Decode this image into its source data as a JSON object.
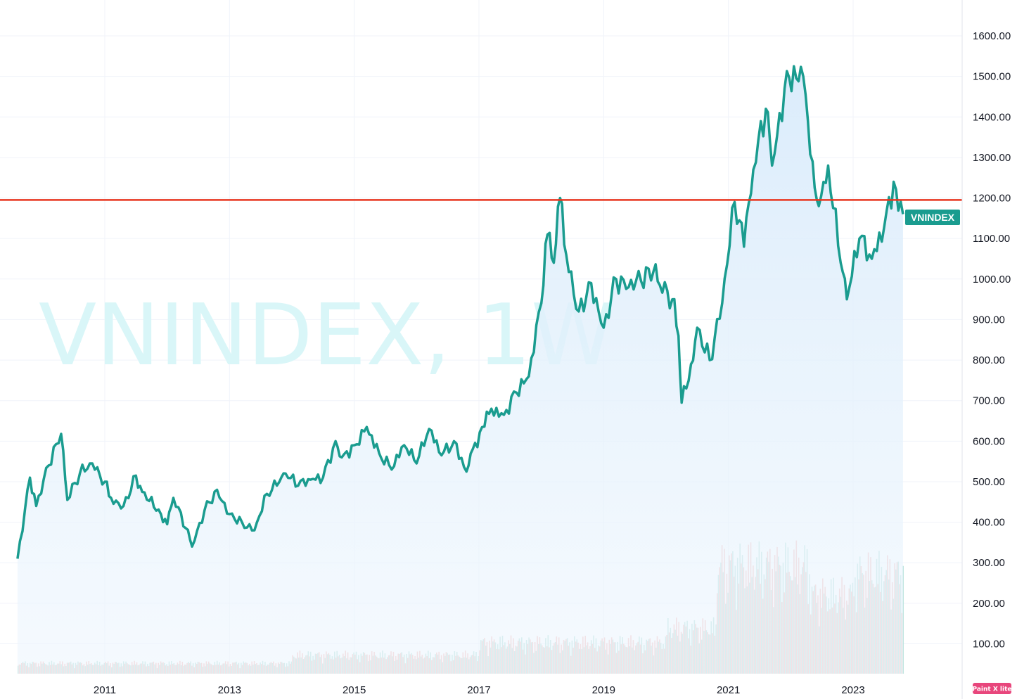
{
  "chart_data": {
    "type": "area",
    "symbol": "VNINDEX",
    "interval": "1W",
    "watermark": "VNINDEX, 1W",
    "x_ticks": [
      "2011",
      "2013",
      "2015",
      "2017",
      "2019",
      "2021",
      "2023"
    ],
    "y_ticks": [
      "100.00",
      "200.00",
      "300.00",
      "400.00",
      "500.00",
      "600.00",
      "700.00",
      "800.00",
      "900.00",
      "1000.00",
      "1100.00",
      "1200.00",
      "1300.00",
      "1400.00",
      "1500.00",
      "1600.00"
    ],
    "ylim": [
      0,
      1680
    ],
    "grid": true,
    "series": [
      {
        "name": "VNINDEX",
        "color": "#1a9c8f",
        "fill": "#dcecfb",
        "points": [
          [
            2009.6,
            310
          ],
          [
            2009.8,
            510
          ],
          [
            2009.9,
            440
          ],
          [
            2010.1,
            540
          ],
          [
            2010.3,
            618
          ],
          [
            2010.4,
            455
          ],
          [
            2010.6,
            520
          ],
          [
            2010.8,
            545
          ],
          [
            2011.0,
            500
          ],
          [
            2011.1,
            460
          ],
          [
            2011.3,
            440
          ],
          [
            2011.5,
            515
          ],
          [
            2011.6,
            475
          ],
          [
            2011.9,
            420
          ],
          [
            2012.0,
            395
          ],
          [
            2012.1,
            460
          ],
          [
            2012.3,
            385
          ],
          [
            2012.4,
            340
          ],
          [
            2012.6,
            430
          ],
          [
            2012.8,
            480
          ],
          [
            2013.0,
            420
          ],
          [
            2013.2,
            400
          ],
          [
            2013.4,
            380
          ],
          [
            2013.6,
            470
          ],
          [
            2013.8,
            500
          ],
          [
            2013.9,
            520
          ],
          [
            2014.1,
            490
          ],
          [
            2014.3,
            505
          ],
          [
            2014.5,
            510
          ],
          [
            2014.7,
            600
          ],
          [
            2014.8,
            560
          ],
          [
            2015.0,
            590
          ],
          [
            2015.2,
            635
          ],
          [
            2015.4,
            570
          ],
          [
            2015.6,
            530
          ],
          [
            2015.8,
            590
          ],
          [
            2016.0,
            545
          ],
          [
            2016.2,
            630
          ],
          [
            2016.4,
            565
          ],
          [
            2016.6,
            600
          ],
          [
            2016.8,
            525
          ],
          [
            2016.9,
            580
          ],
          [
            2017.2,
            680
          ],
          [
            2017.4,
            665
          ],
          [
            2017.6,
            720
          ],
          [
            2017.8,
            760
          ],
          [
            2018.0,
            940
          ],
          [
            2018.1,
            1110
          ],
          [
            2018.2,
            1040
          ],
          [
            2018.3,
            1200
          ],
          [
            2018.4,
            1060
          ],
          [
            2018.6,
            920
          ],
          [
            2018.8,
            990
          ],
          [
            2019.0,
            880
          ],
          [
            2019.2,
            1000
          ],
          [
            2019.4,
            980
          ],
          [
            2019.6,
            995
          ],
          [
            2019.8,
            1020
          ],
          [
            2019.9,
            985
          ],
          [
            2020.1,
            950
          ],
          [
            2020.2,
            860
          ],
          [
            2020.25,
            695
          ],
          [
            2020.4,
            790
          ],
          [
            2020.5,
            880
          ],
          [
            2020.7,
            800
          ],
          [
            2020.9,
            940
          ],
          [
            2021.1,
            1190
          ],
          [
            2021.25,
            1080
          ],
          [
            2021.4,
            1270
          ],
          [
            2021.6,
            1420
          ],
          [
            2021.7,
            1280
          ],
          [
            2021.9,
            1470
          ],
          [
            2022.05,
            1525
          ],
          [
            2022.2,
            1500
          ],
          [
            2022.35,
            1290
          ],
          [
            2022.45,
            1180
          ],
          [
            2022.6,
            1280
          ],
          [
            2022.8,
            1040
          ],
          [
            2022.9,
            950
          ],
          [
            2023.1,
            1100
          ],
          [
            2023.3,
            1050
          ],
          [
            2023.5,
            1130
          ],
          [
            2023.65,
            1240
          ],
          [
            2023.8,
            1160
          ]
        ]
      }
    ],
    "volume": {
      "colors": [
        "#f7c2c0",
        "#b9e3dd"
      ],
      "approx_max": 440
    },
    "reference_line": {
      "value": 1195,
      "color": "#e8361f"
    },
    "last_price_label": {
      "text": "VNINDEX",
      "value": 1150,
      "color": "#1a9c8f"
    }
  },
  "corner_logo": {
    "text": "Paint X lite",
    "color": "#e8467c"
  }
}
